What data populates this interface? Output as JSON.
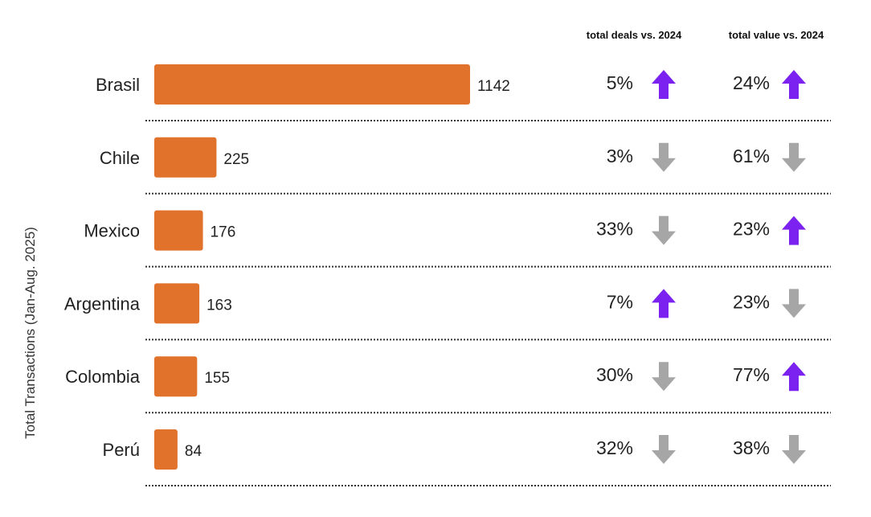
{
  "chart_data": {
    "type": "bar",
    "orientation": "horizontal",
    "ylabel": "Total Transactions  (Jan-Aug. 2025)",
    "columns": {
      "deals_header": "total deals vs. 2024",
      "value_header": "total value vs. 2024"
    },
    "categories": [
      "Brasil",
      "Chile",
      "Mexico",
      "Argentina",
      "Colombia",
      "Perú"
    ],
    "values": [
      1142,
      225,
      176,
      163,
      155,
      84
    ],
    "deals_change": [
      {
        "text": "5%",
        "direction": "up"
      },
      {
        "text": "3%",
        "direction": "down"
      },
      {
        "text": "33%",
        "direction": "down"
      },
      {
        "text": "7%",
        "direction": "up"
      },
      {
        "text": "30%",
        "direction": "down"
      },
      {
        "text": "32%",
        "direction": "down"
      }
    ],
    "value_change": [
      {
        "text": "24%",
        "direction": "up"
      },
      {
        "text": "61%",
        "direction": "down"
      },
      {
        "text": "23%",
        "direction": "up"
      },
      {
        "text": "23%",
        "direction": "down"
      },
      {
        "text": "77%",
        "direction": "up"
      },
      {
        "text": "38%",
        "direction": "down"
      }
    ],
    "xlim": [
      0,
      1142
    ],
    "grid": false,
    "legend": "none"
  },
  "colors": {
    "bar": "#e0722c",
    "arrow_up": "#7b22f0",
    "arrow_down": "#a6a6a6",
    "separator": "#333333"
  },
  "icons": {
    "up": "arrow-up-icon",
    "down": "arrow-down-icon"
  }
}
